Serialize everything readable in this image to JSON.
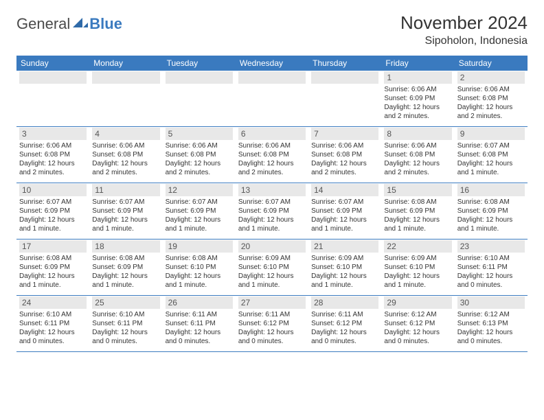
{
  "brand": {
    "part1": "General",
    "part2": "Blue"
  },
  "title": "November 2024",
  "location": "Sipoholon, Indonesia",
  "colors": {
    "header_bg": "#3a7abf",
    "header_text": "#ffffff",
    "daynum_bg": "#e8e8e8",
    "daynum_text": "#555555",
    "body_text": "#333333",
    "row_border": "#3a7abf",
    "logo_gray": "#4a4a4a",
    "logo_blue": "#3a7abf",
    "page_bg": "#ffffff"
  },
  "typography": {
    "title_size": 26,
    "location_size": 16,
    "header_cell_size": 12,
    "daynum_size": 12,
    "body_size": 10,
    "logo_size": 22
  },
  "weekdays": [
    "Sunday",
    "Monday",
    "Tuesday",
    "Wednesday",
    "Thursday",
    "Friday",
    "Saturday"
  ],
  "weeks": [
    [
      null,
      null,
      null,
      null,
      null,
      {
        "n": "1",
        "sr": "Sunrise: 6:06 AM",
        "ss": "Sunset: 6:09 PM",
        "d1": "Daylight: 12 hours",
        "d2": "and 2 minutes."
      },
      {
        "n": "2",
        "sr": "Sunrise: 6:06 AM",
        "ss": "Sunset: 6:08 PM",
        "d1": "Daylight: 12 hours",
        "d2": "and 2 minutes."
      }
    ],
    [
      {
        "n": "3",
        "sr": "Sunrise: 6:06 AM",
        "ss": "Sunset: 6:08 PM",
        "d1": "Daylight: 12 hours",
        "d2": "and 2 minutes."
      },
      {
        "n": "4",
        "sr": "Sunrise: 6:06 AM",
        "ss": "Sunset: 6:08 PM",
        "d1": "Daylight: 12 hours",
        "d2": "and 2 minutes."
      },
      {
        "n": "5",
        "sr": "Sunrise: 6:06 AM",
        "ss": "Sunset: 6:08 PM",
        "d1": "Daylight: 12 hours",
        "d2": "and 2 minutes."
      },
      {
        "n": "6",
        "sr": "Sunrise: 6:06 AM",
        "ss": "Sunset: 6:08 PM",
        "d1": "Daylight: 12 hours",
        "d2": "and 2 minutes."
      },
      {
        "n": "7",
        "sr": "Sunrise: 6:06 AM",
        "ss": "Sunset: 6:08 PM",
        "d1": "Daylight: 12 hours",
        "d2": "and 2 minutes."
      },
      {
        "n": "8",
        "sr": "Sunrise: 6:06 AM",
        "ss": "Sunset: 6:08 PM",
        "d1": "Daylight: 12 hours",
        "d2": "and 2 minutes."
      },
      {
        "n": "9",
        "sr": "Sunrise: 6:07 AM",
        "ss": "Sunset: 6:08 PM",
        "d1": "Daylight: 12 hours",
        "d2": "and 1 minute."
      }
    ],
    [
      {
        "n": "10",
        "sr": "Sunrise: 6:07 AM",
        "ss": "Sunset: 6:09 PM",
        "d1": "Daylight: 12 hours",
        "d2": "and 1 minute."
      },
      {
        "n": "11",
        "sr": "Sunrise: 6:07 AM",
        "ss": "Sunset: 6:09 PM",
        "d1": "Daylight: 12 hours",
        "d2": "and 1 minute."
      },
      {
        "n": "12",
        "sr": "Sunrise: 6:07 AM",
        "ss": "Sunset: 6:09 PM",
        "d1": "Daylight: 12 hours",
        "d2": "and 1 minute."
      },
      {
        "n": "13",
        "sr": "Sunrise: 6:07 AM",
        "ss": "Sunset: 6:09 PM",
        "d1": "Daylight: 12 hours",
        "d2": "and 1 minute."
      },
      {
        "n": "14",
        "sr": "Sunrise: 6:07 AM",
        "ss": "Sunset: 6:09 PM",
        "d1": "Daylight: 12 hours",
        "d2": "and 1 minute."
      },
      {
        "n": "15",
        "sr": "Sunrise: 6:08 AM",
        "ss": "Sunset: 6:09 PM",
        "d1": "Daylight: 12 hours",
        "d2": "and 1 minute."
      },
      {
        "n": "16",
        "sr": "Sunrise: 6:08 AM",
        "ss": "Sunset: 6:09 PM",
        "d1": "Daylight: 12 hours",
        "d2": "and 1 minute."
      }
    ],
    [
      {
        "n": "17",
        "sr": "Sunrise: 6:08 AM",
        "ss": "Sunset: 6:09 PM",
        "d1": "Daylight: 12 hours",
        "d2": "and 1 minute."
      },
      {
        "n": "18",
        "sr": "Sunrise: 6:08 AM",
        "ss": "Sunset: 6:09 PM",
        "d1": "Daylight: 12 hours",
        "d2": "and 1 minute."
      },
      {
        "n": "19",
        "sr": "Sunrise: 6:08 AM",
        "ss": "Sunset: 6:10 PM",
        "d1": "Daylight: 12 hours",
        "d2": "and 1 minute."
      },
      {
        "n": "20",
        "sr": "Sunrise: 6:09 AM",
        "ss": "Sunset: 6:10 PM",
        "d1": "Daylight: 12 hours",
        "d2": "and 1 minute."
      },
      {
        "n": "21",
        "sr": "Sunrise: 6:09 AM",
        "ss": "Sunset: 6:10 PM",
        "d1": "Daylight: 12 hours",
        "d2": "and 1 minute."
      },
      {
        "n": "22",
        "sr": "Sunrise: 6:09 AM",
        "ss": "Sunset: 6:10 PM",
        "d1": "Daylight: 12 hours",
        "d2": "and 1 minute."
      },
      {
        "n": "23",
        "sr": "Sunrise: 6:10 AM",
        "ss": "Sunset: 6:11 PM",
        "d1": "Daylight: 12 hours",
        "d2": "and 0 minutes."
      }
    ],
    [
      {
        "n": "24",
        "sr": "Sunrise: 6:10 AM",
        "ss": "Sunset: 6:11 PM",
        "d1": "Daylight: 12 hours",
        "d2": "and 0 minutes."
      },
      {
        "n": "25",
        "sr": "Sunrise: 6:10 AM",
        "ss": "Sunset: 6:11 PM",
        "d1": "Daylight: 12 hours",
        "d2": "and 0 minutes."
      },
      {
        "n": "26",
        "sr": "Sunrise: 6:11 AM",
        "ss": "Sunset: 6:11 PM",
        "d1": "Daylight: 12 hours",
        "d2": "and 0 minutes."
      },
      {
        "n": "27",
        "sr": "Sunrise: 6:11 AM",
        "ss": "Sunset: 6:12 PM",
        "d1": "Daylight: 12 hours",
        "d2": "and 0 minutes."
      },
      {
        "n": "28",
        "sr": "Sunrise: 6:11 AM",
        "ss": "Sunset: 6:12 PM",
        "d1": "Daylight: 12 hours",
        "d2": "and 0 minutes."
      },
      {
        "n": "29",
        "sr": "Sunrise: 6:12 AM",
        "ss": "Sunset: 6:12 PM",
        "d1": "Daylight: 12 hours",
        "d2": "and 0 minutes."
      },
      {
        "n": "30",
        "sr": "Sunrise: 6:12 AM",
        "ss": "Sunset: 6:13 PM",
        "d1": "Daylight: 12 hours",
        "d2": "and 0 minutes."
      }
    ]
  ]
}
